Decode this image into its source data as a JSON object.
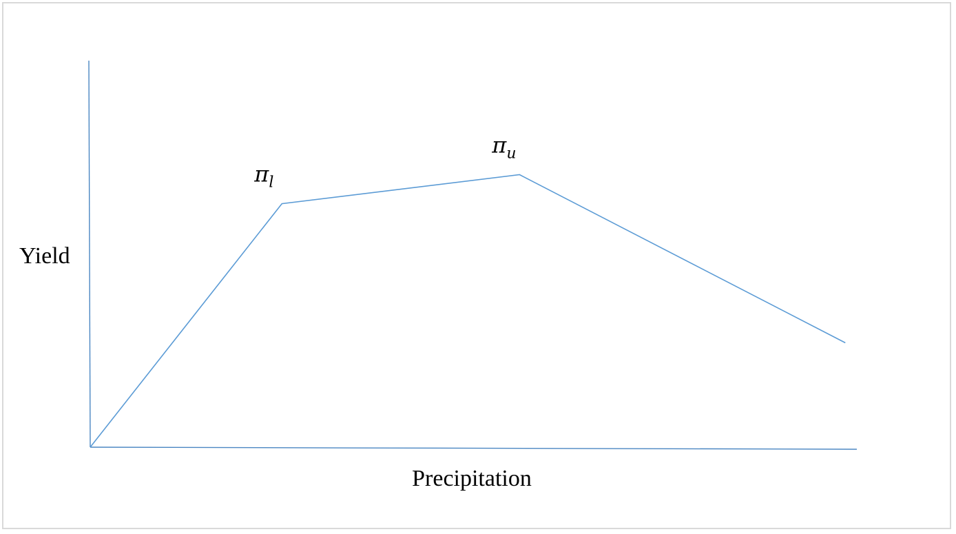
{
  "chart_data": {
    "type": "line",
    "xlabel": "Precipitation",
    "ylabel": "Yield",
    "grid": false,
    "legend": "none",
    "xlim": [
      0,
      100
    ],
    "ylim": [
      0,
      100
    ],
    "series": [
      {
        "x": [
          0,
          25,
          56,
          98.5
        ],
        "y": [
          0,
          63,
          70.5,
          27
        ]
      }
    ],
    "annotations": [
      {
        "symbol": "π",
        "subscript": "l",
        "x": 25,
        "y": 63
      },
      {
        "symbol": "π",
        "subscript": "u",
        "x": 56,
        "y": 70.5
      }
    ],
    "colors": {
      "series": "#5b9bd5",
      "axis": "#4a86c2",
      "frame": "#d9d9d9"
    }
  }
}
